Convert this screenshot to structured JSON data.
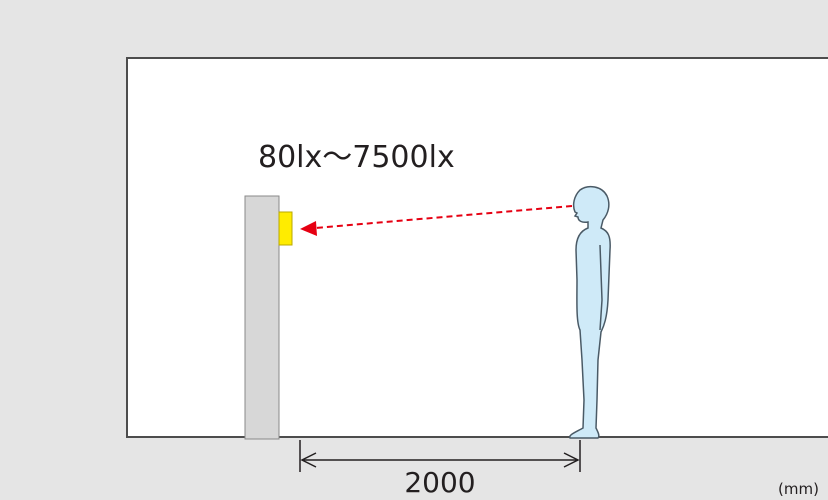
{
  "illuminance_label": "80lx～7500lx",
  "distance_label": "2000",
  "unit_label": "(mm)"
}
